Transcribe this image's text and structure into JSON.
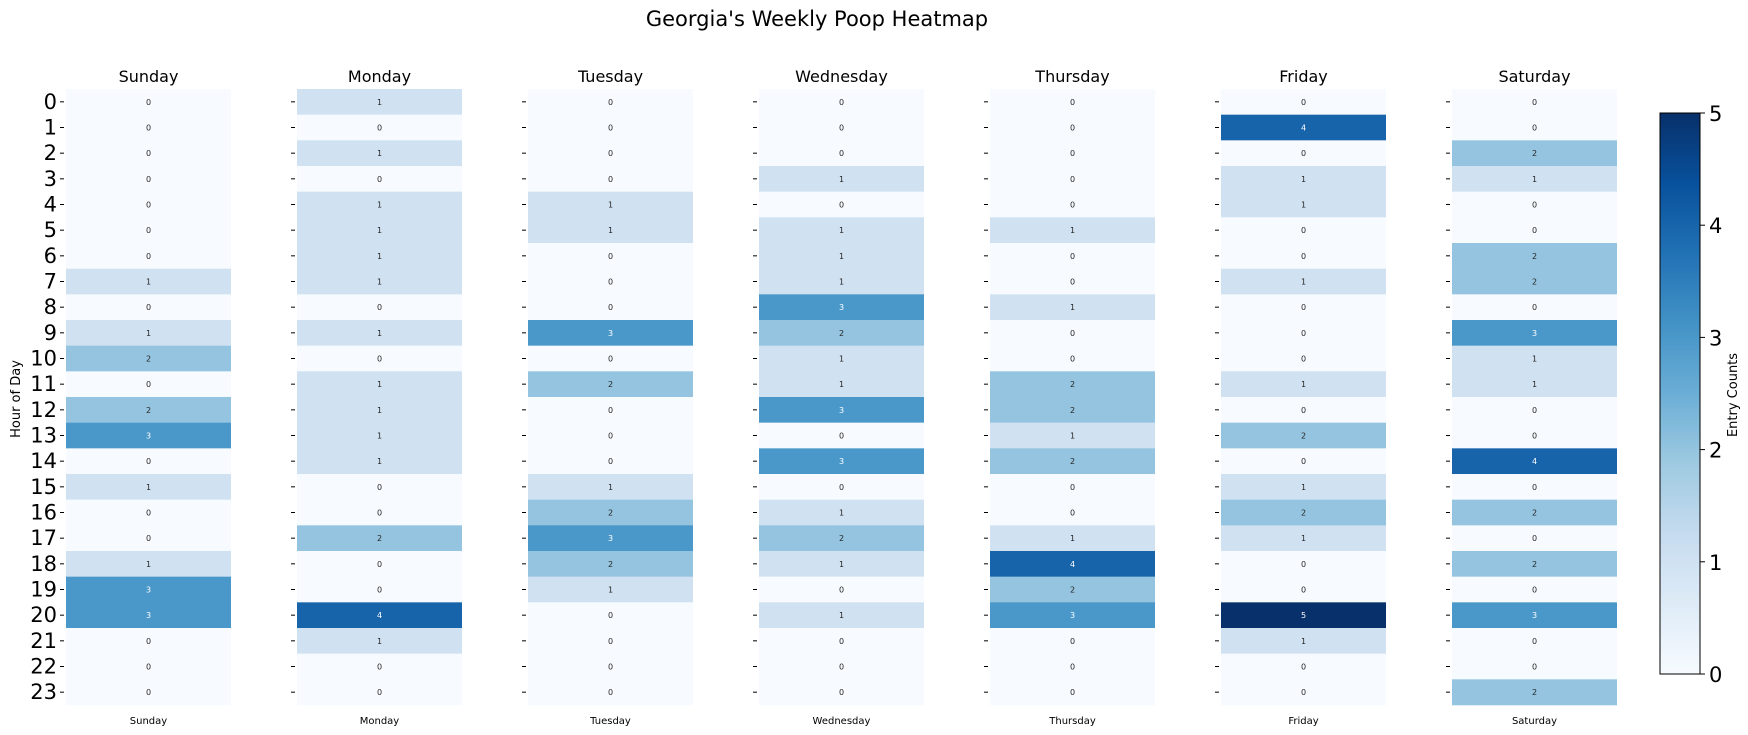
{
  "chart_data": {
    "type": "heatmap",
    "title": "Georgia's Weekly Poop Heatmap",
    "ylabel": "Hour of Day",
    "colorbar_label": "Entry Counts",
    "colorbar_ticks": [
      "0",
      "1",
      "2",
      "3",
      "4",
      "5"
    ],
    "vmin": 0,
    "vmax": 5,
    "colormap": "Blues",
    "hours": [
      "0",
      "1",
      "2",
      "3",
      "4",
      "5",
      "6",
      "7",
      "8",
      "9",
      "10",
      "11",
      "12",
      "13",
      "14",
      "15",
      "16",
      "17",
      "18",
      "19",
      "20",
      "21",
      "22",
      "23"
    ],
    "days": [
      {
        "name": "Sunday",
        "values": [
          0,
          0,
          0,
          0,
          0,
          0,
          0,
          1,
          0,
          1,
          2,
          0,
          2,
          3,
          0,
          1,
          0,
          0,
          1,
          3,
          3,
          0,
          0,
          0
        ]
      },
      {
        "name": "Monday",
        "values": [
          1,
          0,
          1,
          0,
          1,
          1,
          1,
          1,
          0,
          1,
          0,
          1,
          1,
          1,
          1,
          0,
          0,
          2,
          0,
          0,
          4,
          1,
          0,
          0
        ]
      },
      {
        "name": "Tuesday",
        "values": [
          0,
          0,
          0,
          0,
          1,
          1,
          0,
          0,
          0,
          3,
          0,
          2,
          0,
          0,
          0,
          1,
          2,
          3,
          2,
          1,
          0,
          0,
          0,
          0
        ]
      },
      {
        "name": "Wednesday",
        "values": [
          0,
          0,
          0,
          1,
          0,
          1,
          1,
          1,
          3,
          2,
          1,
          1,
          3,
          0,
          3,
          0,
          1,
          2,
          1,
          0,
          1,
          0,
          0,
          0
        ]
      },
      {
        "name": "Thursday",
        "values": [
          0,
          0,
          0,
          0,
          0,
          1,
          0,
          0,
          1,
          0,
          0,
          2,
          2,
          1,
          2,
          0,
          0,
          1,
          4,
          2,
          3,
          0,
          0,
          0
        ]
      },
      {
        "name": "Friday",
        "values": [
          0,
          4,
          0,
          1,
          1,
          0,
          0,
          1,
          0,
          0,
          0,
          1,
          0,
          2,
          0,
          1,
          2,
          1,
          0,
          0,
          5,
          1,
          0,
          0
        ]
      },
      {
        "name": "Saturday",
        "values": [
          0,
          0,
          2,
          1,
          0,
          0,
          2,
          2,
          0,
          3,
          1,
          1,
          0,
          0,
          4,
          0,
          2,
          0,
          2,
          0,
          3,
          0,
          0,
          2
        ]
      }
    ]
  }
}
